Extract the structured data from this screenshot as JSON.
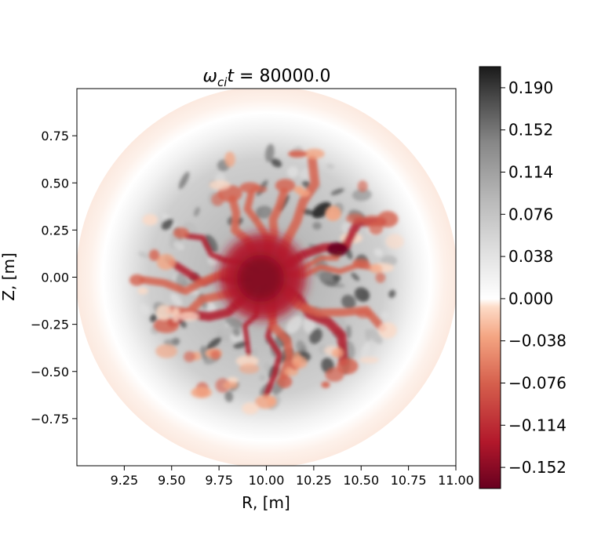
{
  "chart_data": {
    "type": "heatmap",
    "title_prefix": "ω",
    "title_sub": "ci",
    "title_var": "t",
    "title_eq": " = 80000.0",
    "xlabel": "R, [m]",
    "ylabel": "Z, [m]",
    "xlim": [
      9.0,
      11.0
    ],
    "ylim": [
      -1.0,
      1.0
    ],
    "xticks": [
      9.25,
      9.5,
      9.75,
      10.0,
      10.25,
      10.5,
      10.75,
      11.0
    ],
    "xtick_labels": [
      "9.25",
      "9.50",
      "9.75",
      "10.00",
      "10.25",
      "10.50",
      "10.75",
      "11.00"
    ],
    "yticks": [
      0.75,
      0.5,
      0.25,
      0.0,
      -0.25,
      -0.5,
      -0.75
    ],
    "ytick_labels": [
      "0.75",
      "0.50",
      "0.25",
      "0.00",
      "−0.25",
      "−0.50",
      "−0.75"
    ],
    "colorbar": {
      "range": [
        -0.171,
        0.209
      ],
      "ticks": [
        0.19,
        0.152,
        0.114,
        0.076,
        0.038,
        0.0,
        -0.038,
        -0.076,
        -0.114,
        -0.152
      ],
      "tick_labels": [
        "0.190",
        "0.152",
        "0.114",
        "0.076",
        "0.038",
        "0.000",
        "−0.038",
        "−0.076",
        "−0.114",
        "−0.152"
      ],
      "colormap": "RdGy"
    },
    "colors": {
      "red_dark": "#67001f",
      "red": "#b2182b",
      "red_mid": "#d6604d",
      "red_light": "#f4a582",
      "red_pale": "#fddbc7",
      "white": "#ffffff",
      "gray_pale": "#e0e0e0",
      "gray_light": "#bababa",
      "gray": "#878787",
      "gray_dark": "#4d4d4d",
      "black": "#1a1a1a"
    }
  }
}
